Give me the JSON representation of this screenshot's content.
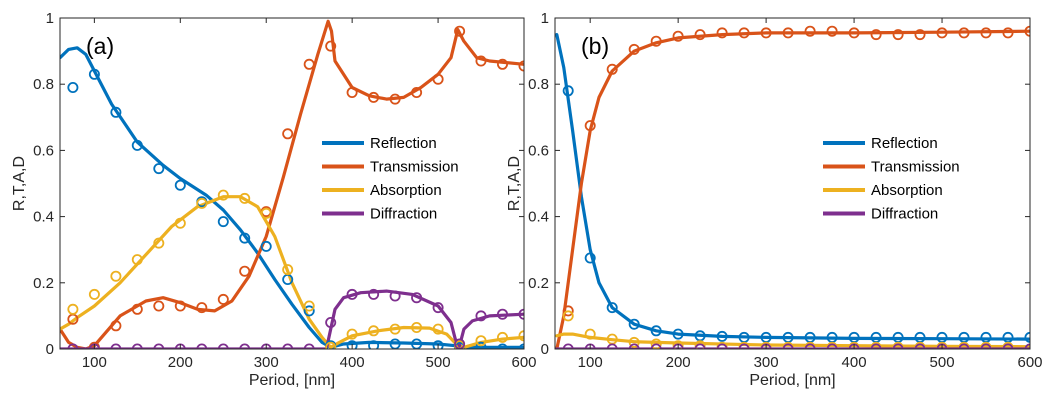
{
  "chart_data": [
    {
      "type": "line",
      "panel_label": "(a)",
      "xlabel": "Period, [nm]",
      "ylabel": "R,T,A,D",
      "xlim": [
        60,
        600
      ],
      "ylim": [
        0,
        1
      ],
      "xticks": [
        100,
        200,
        300,
        400,
        500,
        600
      ],
      "yticks": [
        0,
        0.2,
        0.4,
        0.6,
        0.8,
        1
      ],
      "ytick_labels": [
        "0",
        "0.2",
        "0.4",
        "0.6",
        "0.8",
        "1"
      ],
      "legend_position": "center-right",
      "series": [
        {
          "name": "Reflection",
          "color": "#0072BD",
          "x": [
            60,
            70,
            80,
            90,
            100,
            120,
            150,
            180,
            200,
            230,
            250,
            270,
            290,
            310,
            330,
            350,
            365,
            375,
            390,
            420,
            460,
            500,
            520,
            525,
            540,
            560,
            600
          ],
          "y": [
            0.88,
            0.905,
            0.91,
            0.89,
            0.84,
            0.74,
            0.625,
            0.555,
            0.515,
            0.465,
            0.42,
            0.36,
            0.29,
            0.21,
            0.135,
            0.065,
            0.02,
            0.005,
            0.015,
            0.02,
            0.018,
            0.015,
            0.01,
            0.005,
            0.005,
            0.005,
            0.005
          ],
          "markers_x": [
            75,
            100,
            125,
            150,
            175,
            200,
            225,
            250,
            275,
            300,
            325,
            350,
            375,
            400,
            425,
            450,
            475,
            500,
            525,
            550,
            575,
            600
          ],
          "markers_y": [
            0.79,
            0.83,
            0.715,
            0.615,
            0.545,
            0.495,
            0.445,
            0.385,
            0.335,
            0.31,
            0.21,
            0.115,
            0.01,
            0.01,
            0.01,
            0.015,
            0.015,
            0.01,
            0.005,
            0.005,
            0.0,
            0.0
          ]
        },
        {
          "name": "Transmission",
          "color": "#D95319",
          "x": [
            60,
            70,
            80,
            90,
            100,
            130,
            160,
            180,
            200,
            220,
            240,
            260,
            280,
            300,
            320,
            340,
            360,
            372,
            376,
            380,
            400,
            420,
            440,
            460,
            480,
            500,
            515,
            523,
            530,
            545,
            560,
            600
          ],
          "y": [
            0.06,
            0.02,
            0.005,
            0.0,
            0.01,
            0.1,
            0.145,
            0.155,
            0.14,
            0.12,
            0.115,
            0.145,
            0.22,
            0.34,
            0.52,
            0.71,
            0.89,
            0.99,
            0.96,
            0.87,
            0.79,
            0.765,
            0.755,
            0.76,
            0.79,
            0.83,
            0.88,
            0.965,
            0.93,
            0.88,
            0.87,
            0.86
          ],
          "markers_x": [
            75,
            100,
            125,
            150,
            175,
            200,
            225,
            250,
            275,
            300,
            325,
            350,
            375,
            400,
            425,
            450,
            475,
            500,
            525,
            550,
            575,
            600
          ],
          "markers_y": [
            0.09,
            0.005,
            0.07,
            0.12,
            0.13,
            0.13,
            0.125,
            0.15,
            0.235,
            0.415,
            0.65,
            0.86,
            0.915,
            0.775,
            0.76,
            0.755,
            0.775,
            0.815,
            0.96,
            0.87,
            0.86,
            0.855
          ]
        },
        {
          "name": "Absorption",
          "color": "#EDB120",
          "x": [
            60,
            70,
            80,
            100,
            130,
            160,
            190,
            220,
            250,
            270,
            290,
            310,
            330,
            350,
            365,
            375,
            385,
            400,
            430,
            460,
            490,
            510,
            523,
            530,
            550,
            575,
            600
          ],
          "y": [
            0.06,
            0.075,
            0.095,
            0.13,
            0.2,
            0.285,
            0.37,
            0.43,
            0.46,
            0.46,
            0.43,
            0.34,
            0.2,
            0.09,
            0.035,
            0.005,
            0.02,
            0.04,
            0.055,
            0.065,
            0.063,
            0.045,
            0.01,
            0.005,
            0.02,
            0.03,
            0.035
          ],
          "markers_x": [
            75,
            100,
            125,
            150,
            175,
            200,
            225,
            250,
            275,
            300,
            325,
            350,
            375,
            400,
            425,
            450,
            475,
            500,
            525,
            550,
            575,
            600
          ],
          "markers_y": [
            0.12,
            0.165,
            0.22,
            0.27,
            0.32,
            0.38,
            0.44,
            0.465,
            0.455,
            0.41,
            0.24,
            0.13,
            0.005,
            0.045,
            0.055,
            0.06,
            0.065,
            0.06,
            0.01,
            0.025,
            0.035,
            0.04
          ]
        },
        {
          "name": "Diffraction",
          "color": "#7E2F8E",
          "x": [
            60,
            100,
            200,
            300,
            370,
            375,
            380,
            390,
            410,
            440,
            470,
            500,
            515,
            520,
            525,
            530,
            540,
            560,
            600
          ],
          "y": [
            0.0,
            0.0,
            0.0,
            0.0,
            0.0,
            0.06,
            0.12,
            0.155,
            0.17,
            0.175,
            0.165,
            0.13,
            0.08,
            0.03,
            0.01,
            0.06,
            0.085,
            0.1,
            0.105
          ],
          "markers_x": [
            75,
            100,
            125,
            150,
            175,
            200,
            225,
            250,
            275,
            300,
            325,
            350,
            375,
            400,
            425,
            450,
            475,
            500,
            525,
            550,
            575,
            600
          ],
          "markers_y": [
            0.0,
            0.0,
            0.0,
            0.0,
            0.0,
            0.0,
            0.0,
            0.0,
            0.0,
            0.0,
            0.0,
            0.0,
            0.08,
            0.165,
            0.165,
            0.16,
            0.155,
            0.125,
            0.015,
            0.1,
            0.105,
            0.105
          ]
        }
      ]
    },
    {
      "type": "line",
      "panel_label": "(b)",
      "xlabel": "Period, [nm]",
      "ylabel": "R,T,A,D",
      "xlim": [
        60,
        600
      ],
      "ylim": [
        0,
        1
      ],
      "xticks": [
        100,
        200,
        300,
        400,
        500,
        600
      ],
      "yticks": [
        0,
        0.2,
        0.4,
        0.6,
        0.8,
        1
      ],
      "ytick_labels": [
        "0",
        "0.2",
        "0.4",
        "0.6",
        "0.8",
        "1"
      ],
      "legend_position": "center-right",
      "series": [
        {
          "name": "Reflection",
          "color": "#0072BD",
          "x": [
            62,
            70,
            80,
            90,
            100,
            110,
            125,
            150,
            175,
            200,
            250,
            300,
            400,
            500,
            600
          ],
          "y": [
            0.95,
            0.85,
            0.66,
            0.46,
            0.3,
            0.2,
            0.125,
            0.075,
            0.055,
            0.045,
            0.038,
            0.035,
            0.032,
            0.031,
            0.03
          ],
          "markers_x": [
            75,
            100,
            125,
            150,
            175,
            200,
            225,
            250,
            275,
            300,
            325,
            350,
            375,
            400,
            425,
            450,
            475,
            500,
            525,
            550,
            575,
            600
          ],
          "markers_y": [
            0.78,
            0.275,
            0.125,
            0.075,
            0.055,
            0.045,
            0.04,
            0.038,
            0.035,
            0.035,
            0.035,
            0.035,
            0.035,
            0.035,
            0.035,
            0.035,
            0.035,
            0.035,
            0.035,
            0.035,
            0.035,
            0.035
          ]
        },
        {
          "name": "Transmission",
          "color": "#D95319",
          "x": [
            62,
            70,
            80,
            90,
            100,
            110,
            125,
            150,
            175,
            200,
            250,
            300,
            400,
            500,
            600
          ],
          "y": [
            0.0,
            0.1,
            0.3,
            0.5,
            0.66,
            0.76,
            0.84,
            0.9,
            0.925,
            0.94,
            0.95,
            0.955,
            0.955,
            0.957,
            0.96
          ],
          "markers_x": [
            75,
            100,
            125,
            150,
            175,
            200,
            225,
            250,
            275,
            300,
            325,
            350,
            375,
            400,
            425,
            450,
            475,
            500,
            525,
            550,
            575,
            600
          ],
          "markers_y": [
            0.115,
            0.675,
            0.845,
            0.905,
            0.93,
            0.945,
            0.95,
            0.955,
            0.955,
            0.955,
            0.955,
            0.96,
            0.96,
            0.955,
            0.95,
            0.95,
            0.95,
            0.955,
            0.955,
            0.955,
            0.955,
            0.96
          ]
        },
        {
          "name": "Absorption",
          "color": "#EDB120",
          "x": [
            62,
            70,
            80,
            100,
            125,
            150,
            200,
            300,
            400,
            500,
            600
          ],
          "y": [
            0.04,
            0.045,
            0.045,
            0.035,
            0.028,
            0.022,
            0.018,
            0.012,
            0.01,
            0.008,
            0.007
          ],
          "markers_x": [
            75,
            100,
            125,
            150,
            175,
            200,
            225,
            250,
            275,
            300,
            325,
            350,
            375,
            400,
            425,
            450,
            475,
            500,
            525,
            550,
            575,
            600
          ],
          "markers_y": [
            0.1,
            0.045,
            0.03,
            0.02,
            0.015,
            0.01,
            0.01,
            0.005,
            0.005,
            0.005,
            0.005,
            0.005,
            0.005,
            0.005,
            0.005,
            0.005,
            0.005,
            0.005,
            0.005,
            0.005,
            0.005,
            0.0
          ]
        },
        {
          "name": "Diffraction",
          "color": "#7E2F8E",
          "x": [
            62,
            600
          ],
          "y": [
            0.0,
            0.0
          ],
          "markers_x": [
            75,
            100,
            125,
            150,
            175,
            200,
            225,
            250,
            275,
            300,
            325,
            350,
            375,
            400,
            425,
            450,
            475,
            500,
            525,
            550,
            575,
            600
          ],
          "markers_y": [
            0.0,
            0.0,
            0.0,
            0.0,
            0.0,
            0.0,
            0.0,
            0.0,
            0.0,
            0.0,
            0.0,
            0.0,
            0.0,
            0.0,
            0.0,
            0.0,
            0.0,
            0.0,
            0.0,
            0.0,
            0.0,
            0.0
          ]
        }
      ]
    }
  ]
}
